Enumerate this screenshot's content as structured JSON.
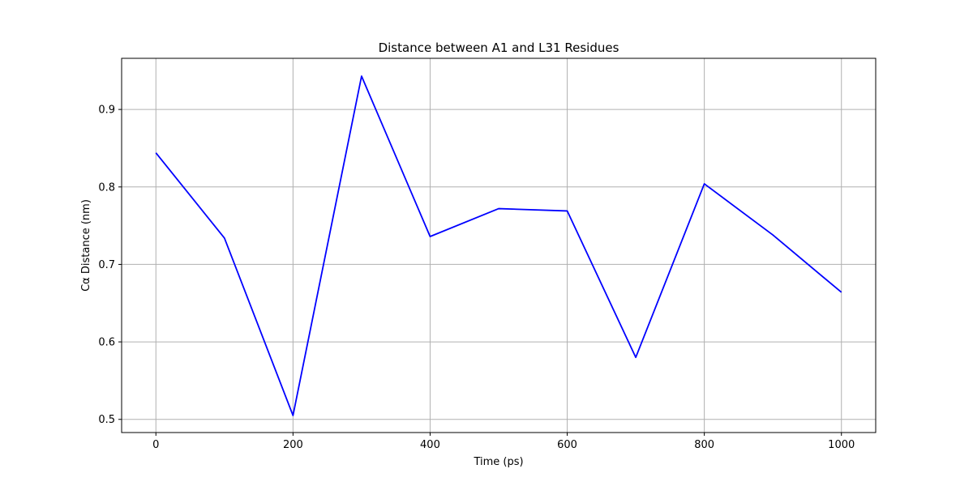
{
  "chart_data": {
    "type": "line",
    "title": "Distance between A1 and L31 Residues",
    "xlabel": "Time (ps)",
    "ylabel": "Cα Distance (nm)",
    "xlim": [
      -50,
      1050
    ],
    "ylim": [
      0.483,
      0.966
    ],
    "x_ticks": [
      0,
      200,
      400,
      600,
      800,
      1000
    ],
    "y_ticks": [
      0.5,
      0.6,
      0.7,
      0.8,
      0.9
    ],
    "x_tick_labels": [
      "0",
      "200",
      "400",
      "600",
      "800",
      "1000"
    ],
    "y_tick_labels": [
      "0.5",
      "0.6",
      "0.7",
      "0.8",
      "0.9"
    ],
    "grid": true,
    "series": [
      {
        "color": "#0000ff",
        "x": [
          0,
          100,
          200,
          300,
          400,
          500,
          600,
          700,
          800,
          900,
          1000
        ],
        "y": [
          0.844,
          0.734,
          0.505,
          0.943,
          0.736,
          0.772,
          0.769,
          0.58,
          0.804,
          0.738,
          0.664
        ]
      }
    ]
  }
}
